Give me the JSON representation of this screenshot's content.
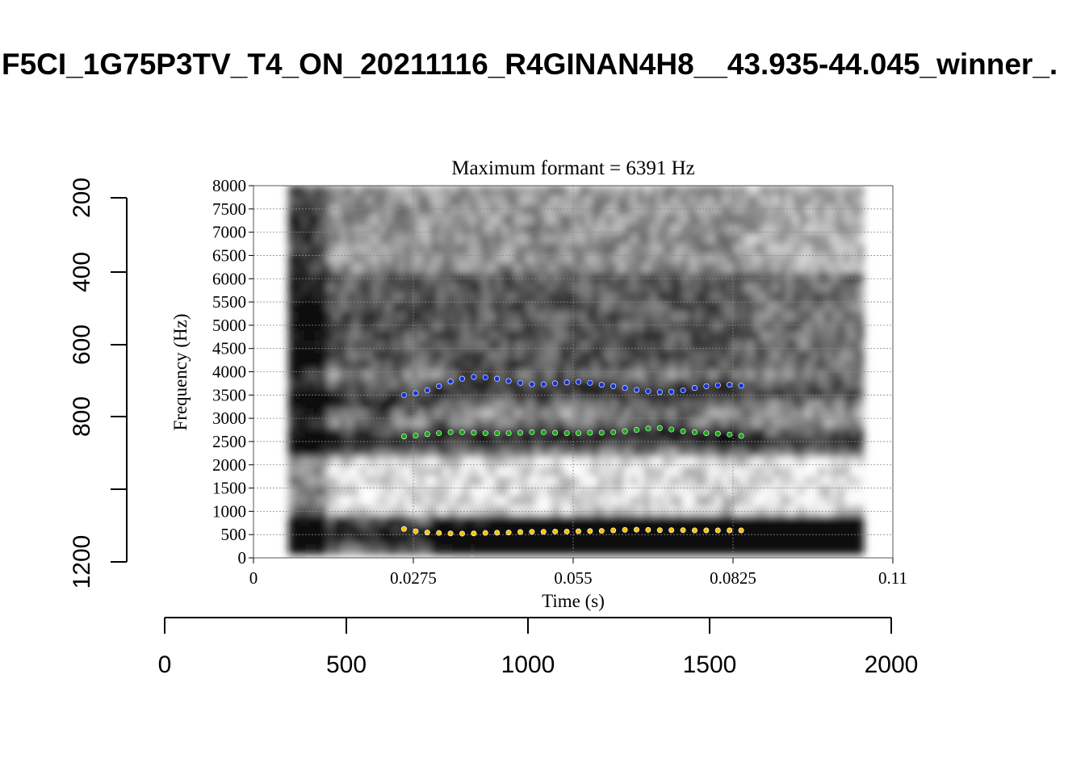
{
  "page_title": "F5CI_1G75P3TV_T4_ON_20211116_R4GINAN4H8__43.935-44.045_winner_.",
  "chart_data": {
    "type": "scatter",
    "title": "Maximum formant = 6391 Hz",
    "xlabel": "Time (s)",
    "ylabel": "Frequency (Hz)",
    "xlim": [
      0,
      0.11
    ],
    "ylim": [
      0,
      8000
    ],
    "x_ticks": [
      "0",
      "0.0275",
      "0.055",
      "0.0825",
      "0.11"
    ],
    "x_tick_values": [
      0,
      0.0275,
      0.055,
      0.0825,
      0.11
    ],
    "y_ticks": [
      "0",
      "500",
      "1000",
      "1500",
      "2000",
      "2500",
      "3000",
      "3500",
      "4000",
      "4500",
      "5000",
      "5500",
      "6000",
      "6500",
      "7000",
      "7500",
      "8000"
    ],
    "y_tick_values": [
      0,
      500,
      1000,
      1500,
      2000,
      2500,
      3000,
      3500,
      4000,
      4500,
      5000,
      5500,
      6000,
      6500,
      7000,
      7500,
      8000
    ],
    "grid": true,
    "background": "grayscale spectrogram",
    "spectrogram_time_range": [
      0.006,
      0.104
    ],
    "x": [
      0.0259,
      0.0279,
      0.0299,
      0.0319,
      0.0339,
      0.0359,
      0.0379,
      0.0399,
      0.0419,
      0.0439,
      0.0459,
      0.0479,
      0.0499,
      0.0519,
      0.0539,
      0.0559,
      0.0579,
      0.0599,
      0.0619,
      0.0639,
      0.0659,
      0.0679,
      0.0699,
      0.0719,
      0.0739,
      0.0759,
      0.0779,
      0.0799,
      0.0819,
      0.0839
    ],
    "series": [
      {
        "color": "#f5c400",
        "values": [
          620,
          570,
          545,
          535,
          525,
          520,
          525,
          535,
          540,
          545,
          555,
          560,
          560,
          565,
          565,
          570,
          575,
          580,
          590,
          600,
          605,
          600,
          595,
          595,
          595,
          590,
          590,
          590,
          590,
          590
        ]
      },
      {
        "color": "#11aa11",
        "values": [
          2610,
          2630,
          2660,
          2680,
          2700,
          2700,
          2690,
          2680,
          2680,
          2680,
          2690,
          2700,
          2700,
          2690,
          2680,
          2680,
          2690,
          2690,
          2700,
          2720,
          2750,
          2780,
          2790,
          2760,
          2720,
          2700,
          2680,
          2670,
          2650,
          2620
        ]
      },
      {
        "color": "#1133dd",
        "values": [
          3500,
          3540,
          3600,
          3690,
          3790,
          3850,
          3890,
          3880,
          3850,
          3800,
          3760,
          3730,
          3730,
          3750,
          3770,
          3780,
          3760,
          3720,
          3690,
          3650,
          3610,
          3580,
          3560,
          3570,
          3600,
          3650,
          3690,
          3710,
          3720,
          3700
        ]
      }
    ]
  },
  "outer_axes": {
    "x_ticks": [
      "0",
      "500",
      "1000",
      "1500",
      "2000"
    ],
    "y_ticks": [
      "200",
      "400",
      "600",
      "800",
      "1200"
    ]
  }
}
